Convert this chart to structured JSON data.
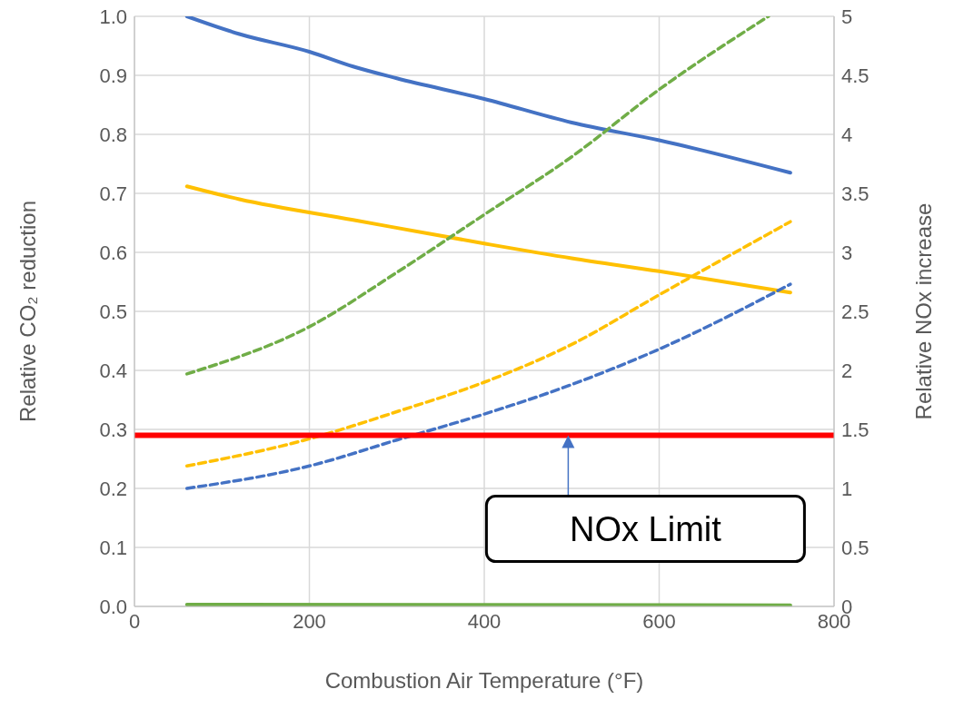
{
  "chart_data": {
    "type": "line",
    "xlabel": "Combustion Air Temperature (°F)",
    "ylabel": "Relative CO₂ reduction",
    "y2label": "Relative NOx increase",
    "xlim": [
      0,
      800
    ],
    "xticks": [
      0,
      200,
      400,
      600,
      800
    ],
    "ylim": [
      0,
      1
    ],
    "yticks": [
      {
        "value": 0,
        "label": "0.0"
      },
      0.1,
      0.2,
      0.3,
      0.4,
      0.5,
      0.6,
      0.7,
      0.8,
      0.9,
      {
        "value": 1,
        "label": "1.0"
      }
    ],
    "y2lim": [
      0,
      5
    ],
    "y2ticks": [
      0,
      0.5,
      1,
      1.5,
      2,
      2.5,
      3,
      3.5,
      4,
      4.5,
      5
    ],
    "grid": true,
    "marker": "none",
    "series": [
      {
        "color": "#4472c4",
        "line_style": "solid",
        "x": [
          60,
          120,
          200,
          250,
          300,
          400,
          500,
          600,
          750
        ],
        "values": [
          1.0,
          0.97,
          0.94,
          0.915,
          0.895,
          0.86,
          0.82,
          0.79,
          0.735
        ]
      },
      {
        "color": "#ffc000",
        "line_style": "solid",
        "x": [
          60,
          120,
          250,
          400,
          500,
          600,
          750
        ],
        "values": [
          0.712,
          0.69,
          0.655,
          0.615,
          0.59,
          0.568,
          0.532
        ]
      },
      {
        "color": "#70ad47",
        "line_style": "solid",
        "x": [
          60,
          750
        ],
        "values": [
          0.003,
          0.002
        ]
      },
      {
        "color": "#70ad47",
        "line_style": "dashed",
        "axis": "y2",
        "x": [
          60,
          200,
          300,
          400,
          500,
          600,
          725
        ],
        "values": [
          1.97,
          2.37,
          2.83,
          3.32,
          3.81,
          4.38,
          5.0
        ]
      },
      {
        "color": "#ffc000",
        "line_style": "dashed",
        "axis": "y2",
        "x": [
          60,
          200,
          300,
          400,
          500,
          600,
          750
        ],
        "values": [
          1.19,
          1.42,
          1.65,
          1.9,
          2.22,
          2.64,
          3.26
        ]
      },
      {
        "color": "#4472c4",
        "line_style": "dashed",
        "axis": "y2",
        "x": [
          60,
          200,
          300,
          400,
          500,
          600,
          750
        ],
        "values": [
          1.0,
          1.19,
          1.41,
          1.63,
          1.88,
          2.18,
          2.73
        ]
      }
    ],
    "ref_lines": [
      {
        "axis": "y2",
        "value": 1.45,
        "label": "NOx Limit",
        "color": "#ff0000",
        "line_style": "solid"
      }
    ]
  }
}
